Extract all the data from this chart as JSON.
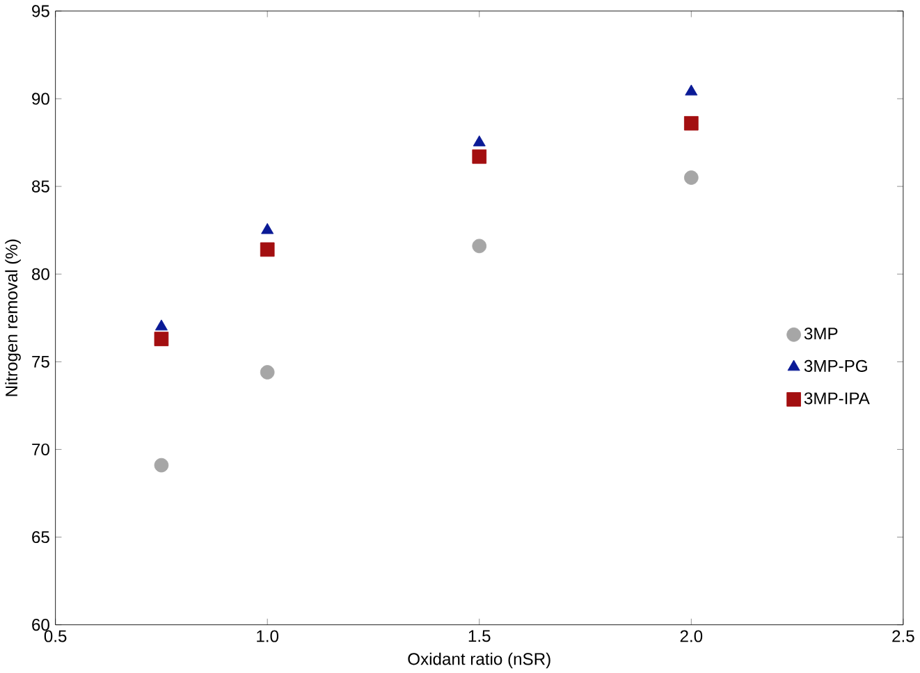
{
  "chart_data": {
    "type": "scatter",
    "xlabel": "Oxidant ratio (nSR)",
    "ylabel": "Nitrogen removal (%)",
    "x": [
      0.75,
      1.0,
      1.5,
      2.0
    ],
    "series": [
      {
        "name": "3MP",
        "color": "#a6a6a6",
        "marker": "circle",
        "values": [
          69.1,
          74.4,
          81.6,
          85.5
        ]
      },
      {
        "name": "3MP-PG",
        "color": "#0a1a96",
        "marker": "triangle",
        "values": [
          77.0,
          82.5,
          87.5,
          90.4
        ]
      },
      {
        "name": "3MP-IPA",
        "color": "#a30f10",
        "marker": "square",
        "values": [
          76.3,
          81.4,
          86.7,
          88.6
        ]
      }
    ],
    "xlim": [
      0.5,
      2.5
    ],
    "xticks": [
      {
        "value": 0.5,
        "label": "0.5"
      },
      {
        "value": 1.0,
        "label": "1.0"
      },
      {
        "value": 1.5,
        "label": "1.5"
      },
      {
        "value": 2.0,
        "label": "2.0"
      },
      {
        "value": 2.5,
        "label": "2.5"
      }
    ],
    "ylim": [
      60,
      95
    ],
    "yticks": [
      60,
      65,
      70,
      75,
      80,
      85,
      90,
      95
    ],
    "grid": false,
    "legend": "right"
  }
}
